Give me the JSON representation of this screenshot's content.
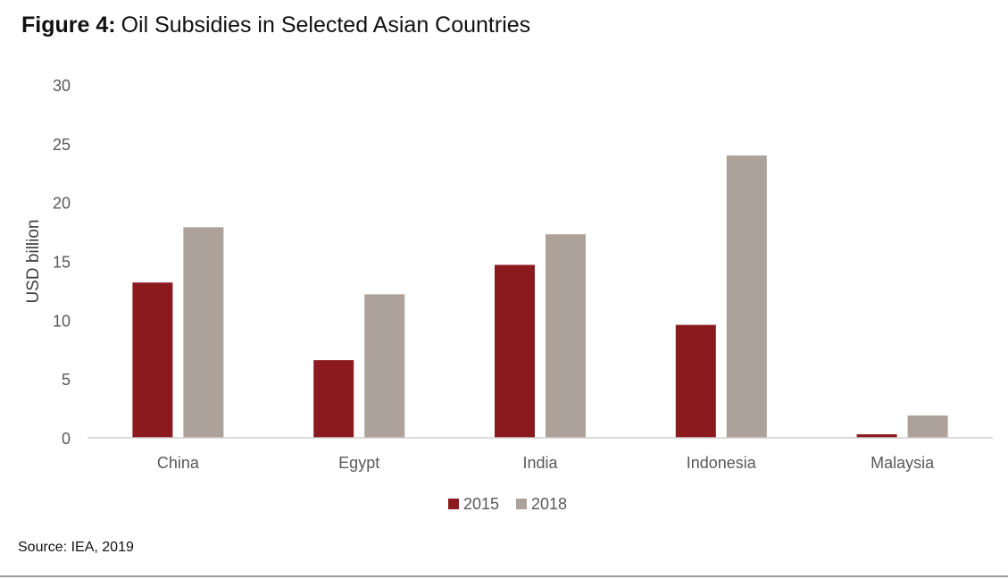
{
  "figure": {
    "label": "Figure 4",
    "title": "Oil Subsidies in Selected Asian Countries"
  },
  "source": "Source: IEA, 2019",
  "chart_data": {
    "type": "bar",
    "title": "",
    "xlabel": "",
    "ylabel": "USD billion",
    "ylim": [
      0,
      30
    ],
    "yticks": [
      0,
      5,
      10,
      15,
      20,
      25,
      30
    ],
    "grid": false,
    "legend_position": "bottom",
    "categories": [
      "China",
      "Egypt",
      "India",
      "Indonesia",
      "Malaysia"
    ],
    "series": [
      {
        "name": "2015",
        "color": "#8b1a1f",
        "values": [
          13.2,
          6.6,
          14.7,
          9.6,
          0.3
        ]
      },
      {
        "name": "2018",
        "color": "#ada299",
        "values": [
          17.9,
          12.2,
          17.3,
          24.0,
          1.9
        ]
      }
    ]
  }
}
